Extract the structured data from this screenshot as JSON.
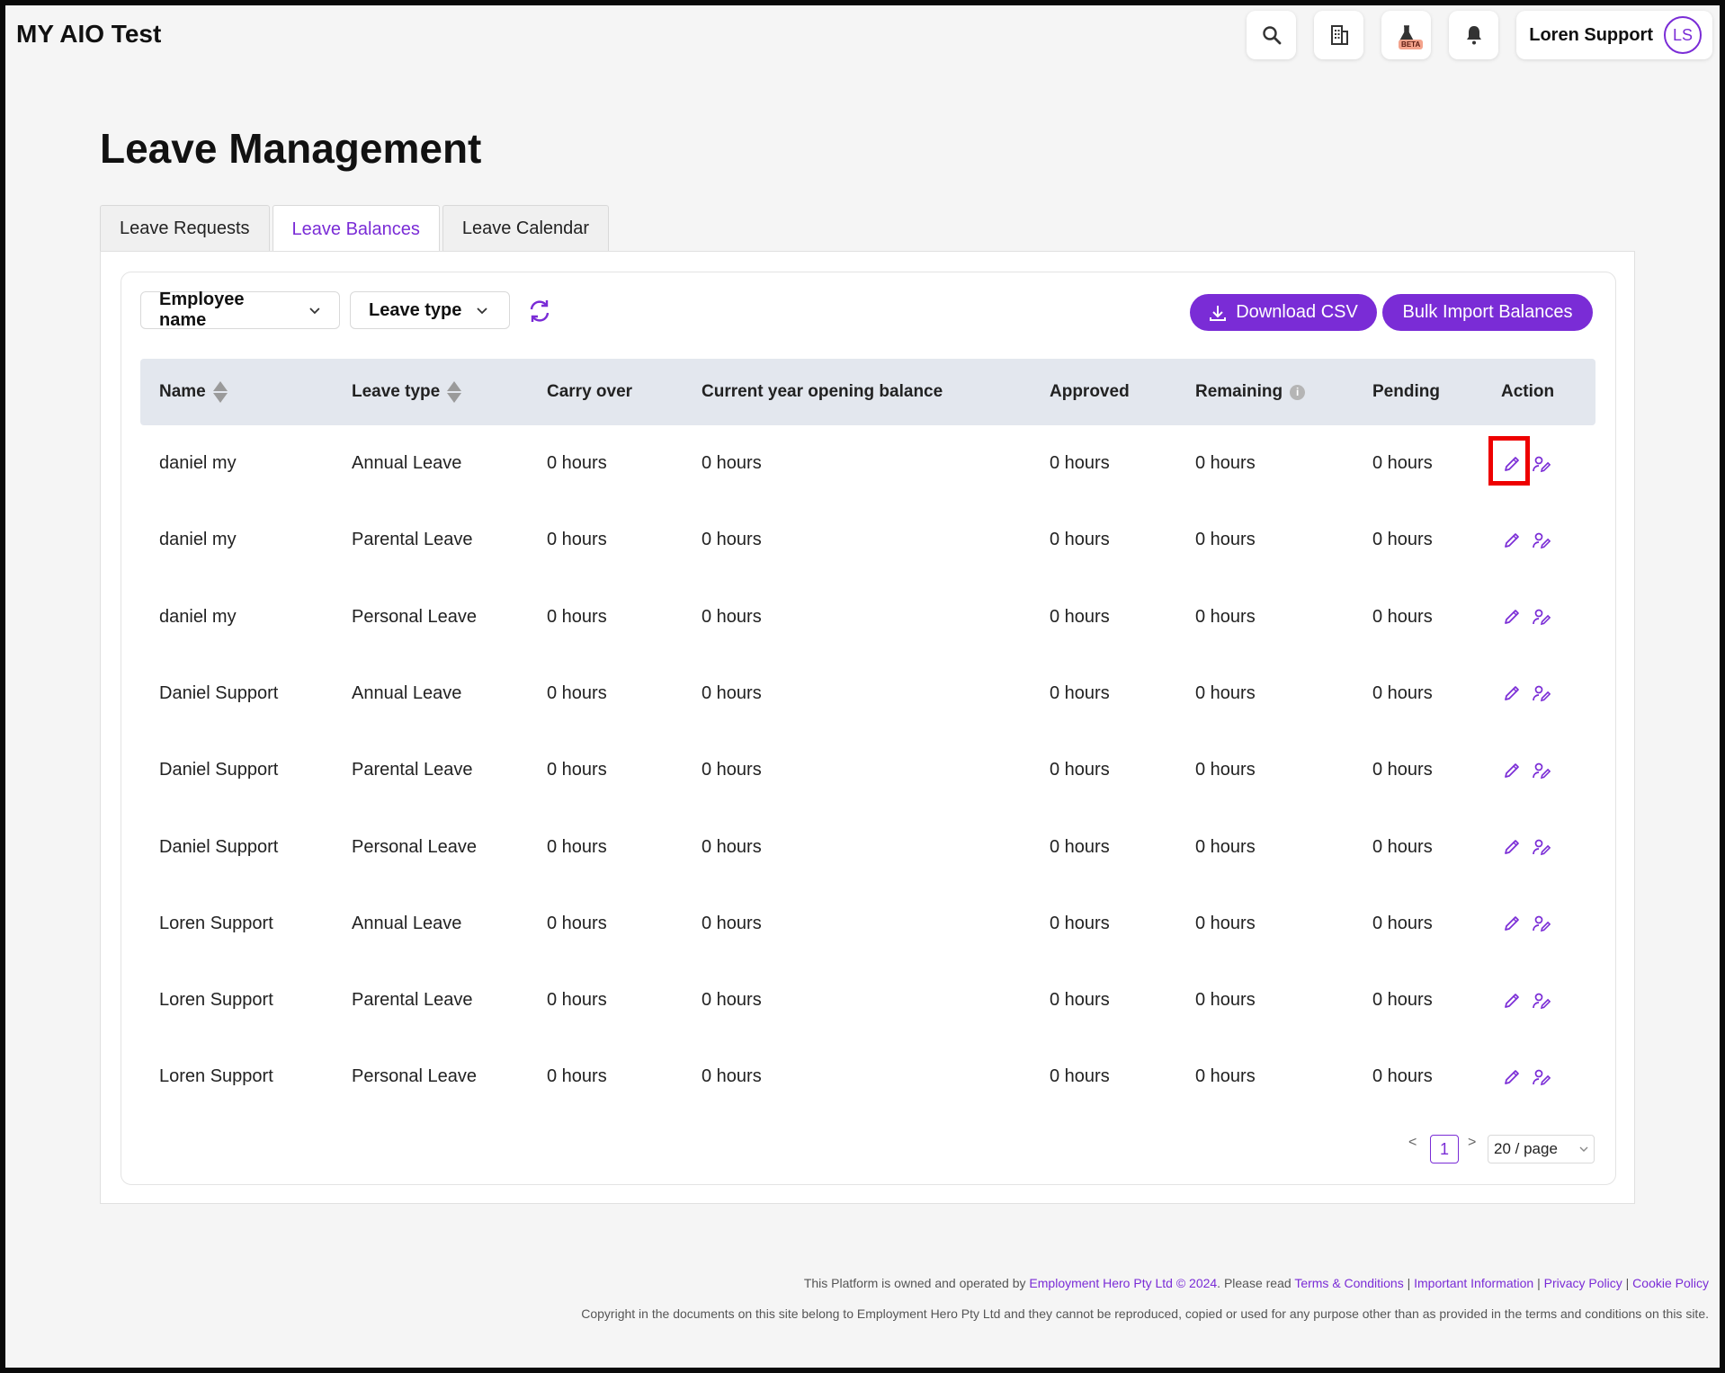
{
  "app": {
    "title": "MY AIO Test"
  },
  "topbar": {
    "icons": [
      "search-icon",
      "building-icon",
      "flask-icon",
      "bell-icon"
    ],
    "beta_label": "BETA",
    "user_name": "Loren Support",
    "user_initials": "LS"
  },
  "page": {
    "title": "Leave Management"
  },
  "tabs": [
    {
      "label": "Leave Requests",
      "active": false
    },
    {
      "label": "Leave Balances",
      "active": true
    },
    {
      "label": "Leave Calendar",
      "active": false
    }
  ],
  "filters": {
    "employee_label": "Employee name",
    "leave_type_label": "Leave type"
  },
  "buttons": {
    "download_csv": "Download CSV",
    "bulk_import": "Bulk Import Balances"
  },
  "table": {
    "headers": [
      "Name",
      "Leave type",
      "Carry over",
      "Current year opening balance",
      "Approved",
      "Remaining",
      "Pending",
      "Action"
    ],
    "rows": [
      [
        "daniel my",
        "Annual Leave",
        "0 hours",
        "0 hours",
        "0 hours",
        "0 hours",
        "0 hours"
      ],
      [
        "daniel my",
        "Parental Leave",
        "0 hours",
        "0 hours",
        "0 hours",
        "0 hours",
        "0 hours"
      ],
      [
        "daniel my",
        "Personal Leave",
        "0 hours",
        "0 hours",
        "0 hours",
        "0 hours",
        "0 hours"
      ],
      [
        "Daniel Support",
        "Annual Leave",
        "0 hours",
        "0 hours",
        "0 hours",
        "0 hours",
        "0 hours"
      ],
      [
        "Daniel Support",
        "Parental Leave",
        "0 hours",
        "0 hours",
        "0 hours",
        "0 hours",
        "0 hours"
      ],
      [
        "Daniel Support",
        "Personal Leave",
        "0 hours",
        "0 hours",
        "0 hours",
        "0 hours",
        "0 hours"
      ],
      [
        "Loren Support",
        "Annual Leave",
        "0 hours",
        "0 hours",
        "0 hours",
        "0 hours",
        "0 hours"
      ],
      [
        "Loren Support",
        "Parental Leave",
        "0 hours",
        "0 hours",
        "0 hours",
        "0 hours",
        "0 hours"
      ],
      [
        "Loren Support",
        "Personal Leave",
        "0 hours",
        "0 hours",
        "0 hours",
        "0 hours",
        "0 hours"
      ]
    ]
  },
  "pagination": {
    "prev": "<",
    "current_page": "1",
    "next": ">",
    "page_size": "20 / page"
  },
  "footer": {
    "line1_prefix": "This Platform is owned and operated by",
    "company_link": "Employment Hero Pty Ltd © 2024",
    "line1_mid": ". Please read",
    "terms_link": "Terms & Conditions",
    "important_link": "Important Information",
    "privacy_link": "Privacy Policy",
    "cookie_link": "Cookie Policy",
    "separator": "|",
    "copyright": "Copyright in the documents on this site belong to Employment Hero Pty Ltd and they cannot be reproduced, copied or used for any purpose other than as provided in the terms and conditions on this site."
  },
  "colors": {
    "accent": "#7a2cd6",
    "header_bg": "#e3e7ee",
    "highlight": "#ee0000"
  }
}
